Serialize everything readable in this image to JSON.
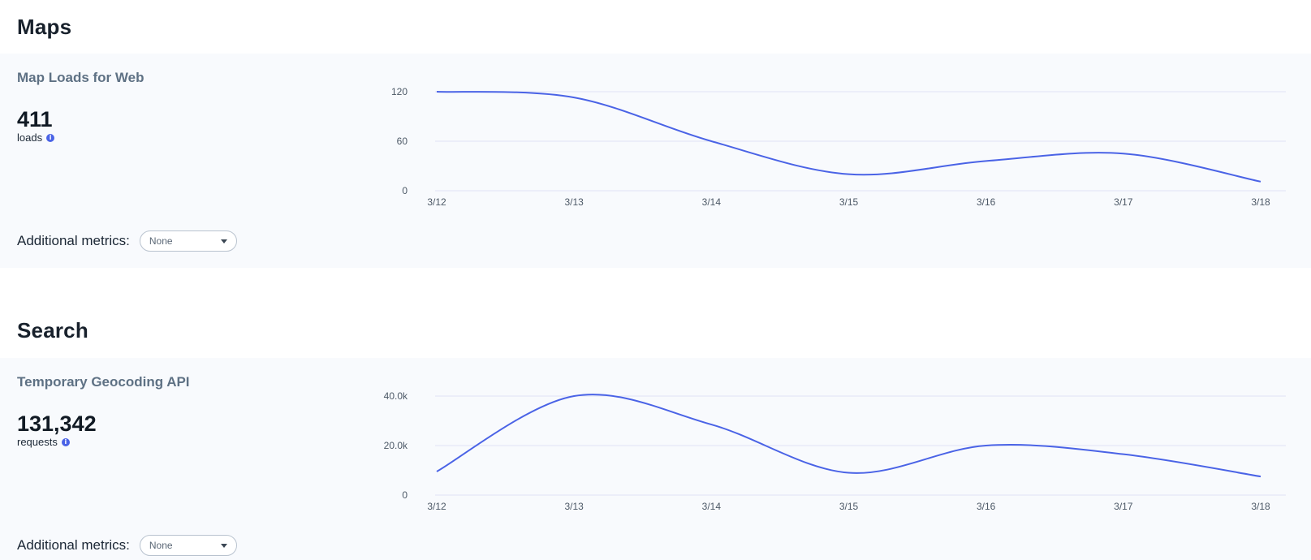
{
  "sections": [
    {
      "heading": "Maps",
      "metric_title": "Map Loads for Web",
      "value": "411",
      "unit": "loads",
      "additional_label": "Additional metrics:",
      "select_value": "None"
    },
    {
      "heading": "Search",
      "metric_title": "Temporary Geocoding API",
      "value": "131,342",
      "unit": "requests",
      "additional_label": "Additional metrics:",
      "select_value": "None"
    }
  ],
  "colors": {
    "line": "#4a63e6",
    "grid": "#dfe3f5",
    "panel": "#f8fafd"
  },
  "icons": {
    "info": "info-icon",
    "dropdown": "chevron-down-icon"
  },
  "chart_data": [
    {
      "type": "line",
      "title": "",
      "xlabel": "",
      "ylabel": "",
      "x": [
        "3/12",
        "3/13",
        "3/14",
        "3/15",
        "3/16",
        "3/17",
        "3/18"
      ],
      "series": [
        {
          "values": [
            120,
            113,
            60,
            20,
            36,
            45,
            11
          ]
        }
      ],
      "yticks": [
        0,
        60,
        120
      ],
      "ytick_labels": [
        "0",
        "60",
        "120"
      ],
      "ylim": [
        0,
        120
      ],
      "grid": true,
      "legend": "none"
    },
    {
      "type": "line",
      "title": "",
      "xlabel": "",
      "ylabel": "",
      "x": [
        "3/12",
        "3/13",
        "3/14",
        "3/15",
        "3/16",
        "3/17",
        "3/18"
      ],
      "series": [
        {
          "values": [
            9500,
            40000,
            28500,
            9000,
            20000,
            16500,
            7500
          ]
        }
      ],
      "yticks": [
        0,
        20000,
        40000
      ],
      "ytick_labels": [
        "0",
        "20.0k",
        "40.0k"
      ],
      "ylim": [
        0,
        40000
      ],
      "grid": true,
      "legend": "none"
    }
  ]
}
